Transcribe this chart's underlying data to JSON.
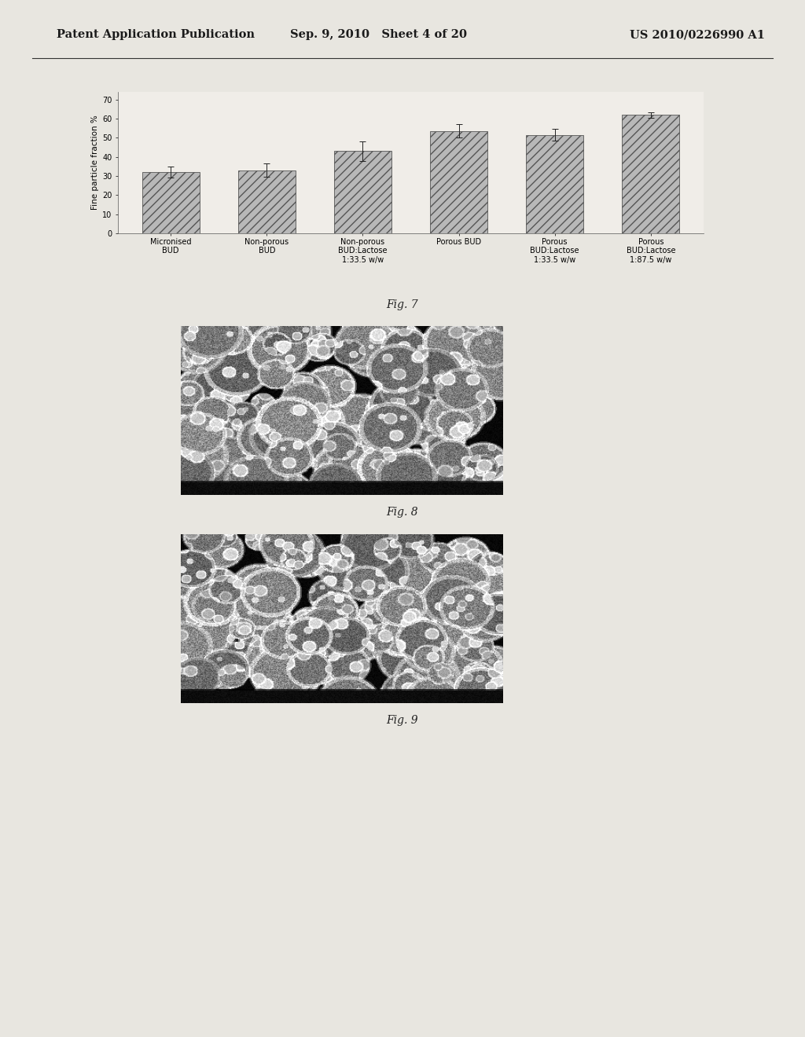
{
  "page_header_left": "Patent Application Publication",
  "page_header_mid": "Sep. 9, 2010   Sheet 4 of 20",
  "page_header_right": "US 2010/0226990 A1",
  "bar_values": [
    32.0,
    33.0,
    43.0,
    53.5,
    51.5,
    62.0
  ],
  "bar_errors": [
    3.0,
    3.5,
    5.0,
    3.5,
    3.0,
    1.5
  ],
  "bar_labels": [
    "Micronised\nBUD",
    "Non-porous\nBUD",
    "Non-porous\nBUD:Lactose\n1:33.5 w/w",
    "Porous BUD",
    "Porous\nBUD:Lactose\n1:33.5 w/w",
    "Porous\nBUD:Lactose\n1:87.5 w/w"
  ],
  "ylabel": "Fine particle fraction %",
  "yticks": [
    0,
    10,
    20,
    30,
    40,
    50,
    60,
    70
  ],
  "ylim": [
    0,
    74
  ],
  "fig7_label": "Fig. 7",
  "fig8_label": "Fig. 8",
  "fig9_label": "Fig. 9",
  "bar_color": "#b8b8b8",
  "bar_hatch": "///",
  "page_bg": "#e8e6e0",
  "chart_outer_bg": "#dedad4",
  "chart_inner_bg": "#f0ede8"
}
